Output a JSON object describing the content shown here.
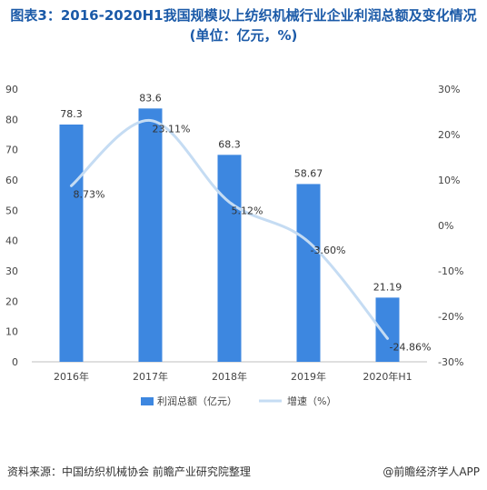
{
  "title": "图表3：2016-2020H1我国规模以上纺织机械行业企业利润总额及变化情况(单位：亿元，%)",
  "chart_data": {
    "type": "bar",
    "categories": [
      "2016年",
      "2017年",
      "2018年",
      "2019年",
      "2020年H1"
    ],
    "series": [
      {
        "name": "利润总额（亿元）",
        "type": "bar",
        "axis": "left",
        "values": [
          78.3,
          83.6,
          68.3,
          58.67,
          21.19
        ],
        "labels": [
          "78.3",
          "83.6",
          "68.3",
          "58.67",
          "21.19"
        ],
        "color": "#3d87e0"
      },
      {
        "name": "增速（%）",
        "type": "line",
        "axis": "right",
        "values": [
          8.73,
          23.11,
          5.12,
          -3.6,
          -24.86
        ],
        "labels": [
          "8.73%",
          "23.11%",
          "5.12%",
          "-3.60%",
          "-24.86%"
        ],
        "color": "#c5dcf3"
      }
    ],
    "y_left": {
      "min": 0,
      "max": 90,
      "ticks": [
        "0",
        "10",
        "20",
        "30",
        "40",
        "50",
        "60",
        "70",
        "80",
        "90"
      ]
    },
    "y_right": {
      "min": -30,
      "max": 30,
      "ticks": [
        "-30%",
        "-20%",
        "-10%",
        "0%",
        "10%",
        "20%",
        "30%"
      ]
    },
    "grid": false,
    "legend_position": "bottom"
  },
  "footer": {
    "source": "资料来源：中国纺织机械协会 前瞻产业研究院整理",
    "brand": "@前瞻经济学人APP"
  }
}
